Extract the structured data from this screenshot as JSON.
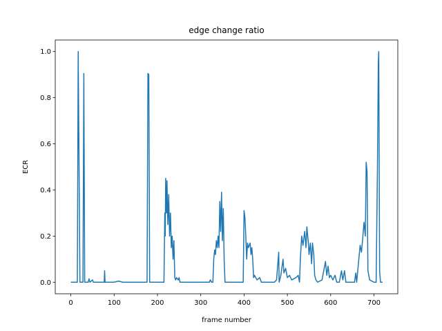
{
  "chart_data": {
    "type": "line",
    "title": "edge change ratio",
    "x_label": "frame number",
    "y_label": "ECR",
    "x": [
      0,
      15,
      17,
      19,
      21,
      28,
      30,
      32,
      40,
      42,
      44,
      50,
      52,
      77,
      78,
      79,
      100,
      110,
      120,
      176,
      178,
      180,
      182,
      215,
      217,
      218,
      219,
      221,
      222,
      224,
      226,
      228,
      230,
      232,
      234,
      236,
      238,
      240,
      242,
      244,
      248,
      250,
      252,
      320,
      322,
      325,
      328,
      330,
      332,
      334,
      336,
      338,
      340,
      342,
      344,
      346,
      348,
      350,
      352,
      354,
      356,
      398,
      400,
      402,
      404,
      406,
      408,
      410,
      414,
      416,
      418,
      420,
      422,
      424,
      430,
      436,
      440,
      470,
      475,
      480,
      481,
      485,
      490,
      492,
      496,
      500,
      505,
      510,
      520,
      525,
      528,
      530,
      533,
      536,
      540,
      543,
      545,
      548,
      550,
      553,
      556,
      558,
      561,
      563,
      566,
      570,
      580,
      585,
      588,
      591,
      594,
      597,
      600,
      605,
      610,
      614,
      620,
      625,
      628,
      632,
      635,
      655,
      658,
      660,
      665,
      668,
      671,
      674,
      677,
      680,
      682,
      684,
      686,
      690,
      700,
      705,
      708,
      710,
      711,
      713,
      715,
      720
    ],
    "series": [
      {
        "name": "ECR",
        "color": "#1f77b4",
        "values": [
          0,
          0,
          1.0,
          0.5,
          0,
          0,
          0.905,
          0,
          0,
          0.015,
          0,
          0.01,
          0,
          0,
          0.05,
          0,
          0,
          0.005,
          0,
          0,
          0.905,
          0.9,
          0,
          0,
          0.3,
          0.2,
          0.45,
          0.3,
          0.44,
          0.25,
          0.38,
          0.2,
          0.3,
          0.15,
          0.2,
          0.1,
          0.18,
          0.02,
          0.01,
          0.02,
          0.01,
          0.02,
          0,
          0,
          0.01,
          0,
          0,
          0.1,
          0.14,
          0.12,
          0.18,
          0.15,
          0.2,
          0.15,
          0.35,
          0.22,
          0.39,
          0.18,
          0.32,
          0.1,
          0,
          0,
          0.31,
          0.28,
          0.2,
          0.1,
          0.17,
          0.15,
          0.17,
          0.12,
          0.15,
          0.1,
          0.02,
          0.03,
          0.01,
          0.02,
          0,
          0,
          0.01,
          0.13,
          0,
          0.03,
          0.1,
          0.04,
          0.06,
          0.02,
          0.03,
          0.01,
          0.02,
          0.03,
          0,
          0.1,
          0.2,
          0.16,
          0.22,
          0.15,
          0.24,
          0.18,
          0.12,
          0.17,
          0.08,
          0.17,
          0.12,
          0.03,
          0.01,
          0,
          0.01,
          0.06,
          0.09,
          0.03,
          0.07,
          0.02,
          0.03,
          0.01,
          0.03,
          0,
          0,
          0.05,
          0.01,
          0.05,
          0,
          0,
          0.04,
          0,
          0.1,
          0.16,
          0.13,
          0.19,
          0.26,
          0.2,
          0.52,
          0.48,
          0.05,
          0.01,
          0,
          0,
          0.5,
          0.95,
          1.0,
          0.05,
          0,
          0
        ]
      }
    ],
    "xlim": [
      -36,
      755
    ],
    "xticks": [
      0,
      100,
      200,
      300,
      400,
      500,
      600,
      700
    ],
    "ylim": [
      -0.05,
      1.05
    ],
    "yticks": [
      {
        "value": 0,
        "label": "0.0"
      },
      0.2,
      0.4,
      0.6,
      0.8,
      {
        "value": 1,
        "label": "1.0"
      }
    ]
  }
}
